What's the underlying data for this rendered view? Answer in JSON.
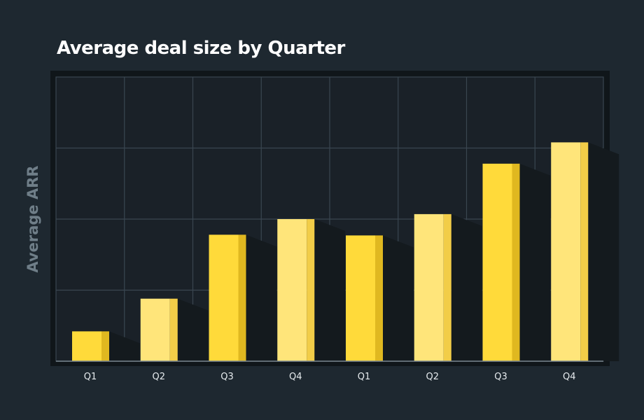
{
  "chart_data": {
    "type": "bar",
    "title": "Average deal size by Quarter",
    "xlabel": "",
    "ylabel": "Average ARR",
    "categories": [
      "Q1",
      "Q2",
      "Q3",
      "Q4",
      "Q1",
      "Q2",
      "Q3",
      "Q4"
    ],
    "values": [
      0.42,
      0.88,
      1.78,
      2.0,
      1.77,
      2.07,
      2.78,
      3.08
    ],
    "ylim": [
      0,
      4
    ],
    "y_tick_labels_shown": false,
    "grid": true
  },
  "colors": {
    "background": "#1e2830",
    "plot_background": "#1a2128",
    "grid": "#3a4650",
    "bar_bright": "#ffda3a",
    "bar_light": "#ffe57a",
    "bar_side_bright": "#e0b820",
    "bar_side_light": "#f2cd48",
    "shadow": "#141a1e"
  }
}
